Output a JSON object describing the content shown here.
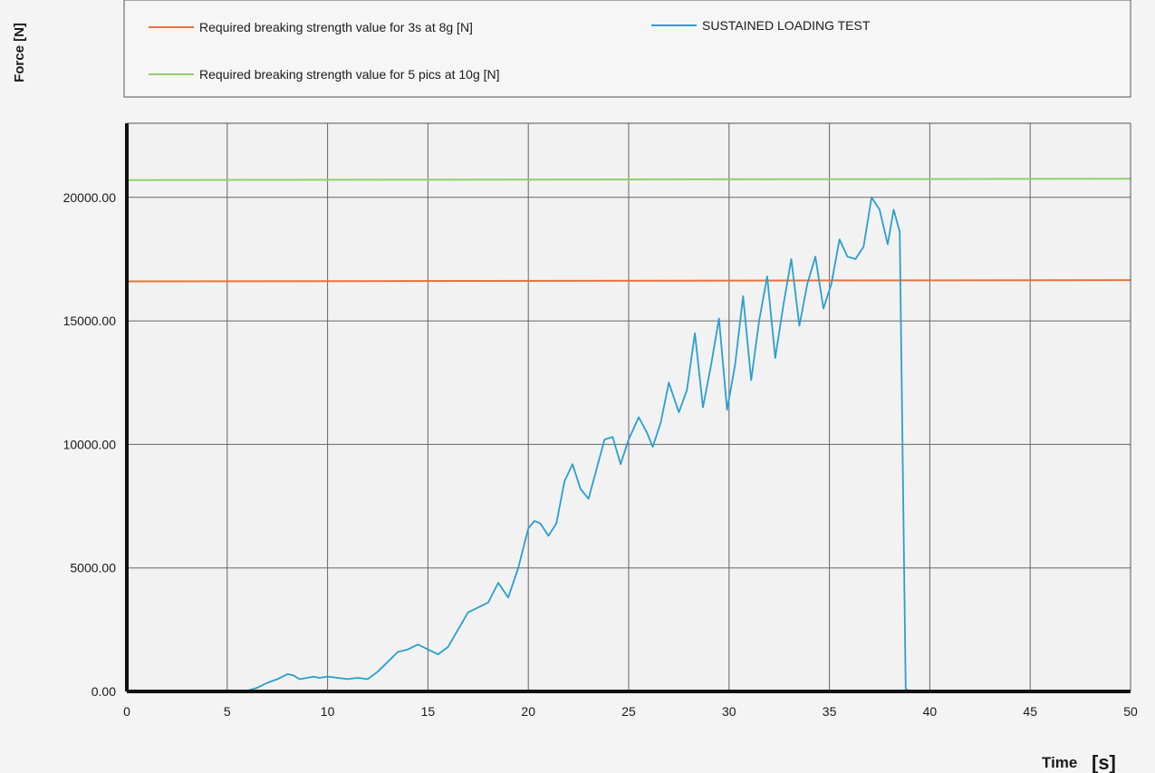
{
  "chart_data": {
    "type": "line",
    "title": "",
    "xlabel": "Time",
    "xlabel_unit": "[s]",
    "ylabel": "Force [N]",
    "xlim": [
      0,
      50
    ],
    "ylim": [
      0,
      23000
    ],
    "x_ticks": [
      0,
      5,
      10,
      15,
      20,
      25,
      30,
      35,
      40,
      45,
      50
    ],
    "y_ticks": [
      0,
      5000,
      10000,
      15000,
      20000
    ],
    "y_tick_labels": [
      "0.00",
      "5000.00",
      "10000.00",
      "15000.00",
      "20000.00"
    ],
    "grid": true,
    "legend_position": "top",
    "series": [
      {
        "name": "Required breaking strength value for 3s at 8g [N]",
        "color": "#e8733a",
        "x": [
          0,
          50
        ],
        "y": [
          16600,
          16650
        ]
      },
      {
        "name": "SUSTAINED LOADING TEST",
        "color": "#2a9fd0",
        "x": [
          0,
          5,
          6,
          6.5,
          7,
          7.5,
          8,
          8.3,
          8.6,
          9,
          9.3,
          9.6,
          10,
          10.5,
          11,
          11.5,
          12,
          12.5,
          13,
          13.5,
          14,
          14.5,
          15,
          15.5,
          16,
          16.5,
          17,
          17.5,
          18,
          18.5,
          19,
          19.5,
          20,
          20.3,
          20.6,
          21,
          21.4,
          21.8,
          22.2,
          22.6,
          23,
          23.4,
          23.8,
          24.2,
          24.6,
          25,
          25.5,
          25.9,
          26.2,
          26.6,
          27,
          27.5,
          27.9,
          28.3,
          28.7,
          29.1,
          29.5,
          29.9,
          30.3,
          30.7,
          31.1,
          31.5,
          31.9,
          32.3,
          32.7,
          33.1,
          33.5,
          33.9,
          34.3,
          34.7,
          35.1,
          35.5,
          35.9,
          36.3,
          36.7,
          37.1,
          37.5,
          37.9,
          38.2,
          38.5,
          38.8,
          39.0,
          39.2,
          41
        ],
        "y": [
          0,
          0,
          30,
          150,
          350,
          500,
          700,
          650,
          500,
          550,
          600,
          550,
          600,
          550,
          500,
          550,
          500,
          800,
          1200,
          1600,
          1700,
          1900,
          1700,
          1500,
          1800,
          2500,
          3200,
          3400,
          3600,
          4400,
          3800,
          5000,
          6600,
          6900,
          6800,
          6300,
          6800,
          8500,
          9200,
          8200,
          7800,
          9000,
          10200,
          10300,
          9200,
          10200,
          11100,
          10500,
          9900,
          10900,
          12500,
          11300,
          12200,
          14500,
          11500,
          13200,
          15100,
          11400,
          13200,
          16000,
          12600,
          15000,
          16800,
          13500,
          15600,
          17500,
          14800,
          16500,
          17600,
          15500,
          16500,
          18300,
          17600,
          17500,
          18000,
          20000,
          19500,
          18100,
          19500,
          18600,
          100,
          0,
          0,
          0
        ]
      },
      {
        "name": "Required breaking strength value for 5 pics at 10g [N]",
        "color": "#8fd06a",
        "x": [
          0,
          50
        ],
        "y": [
          20700,
          20750
        ]
      }
    ]
  }
}
